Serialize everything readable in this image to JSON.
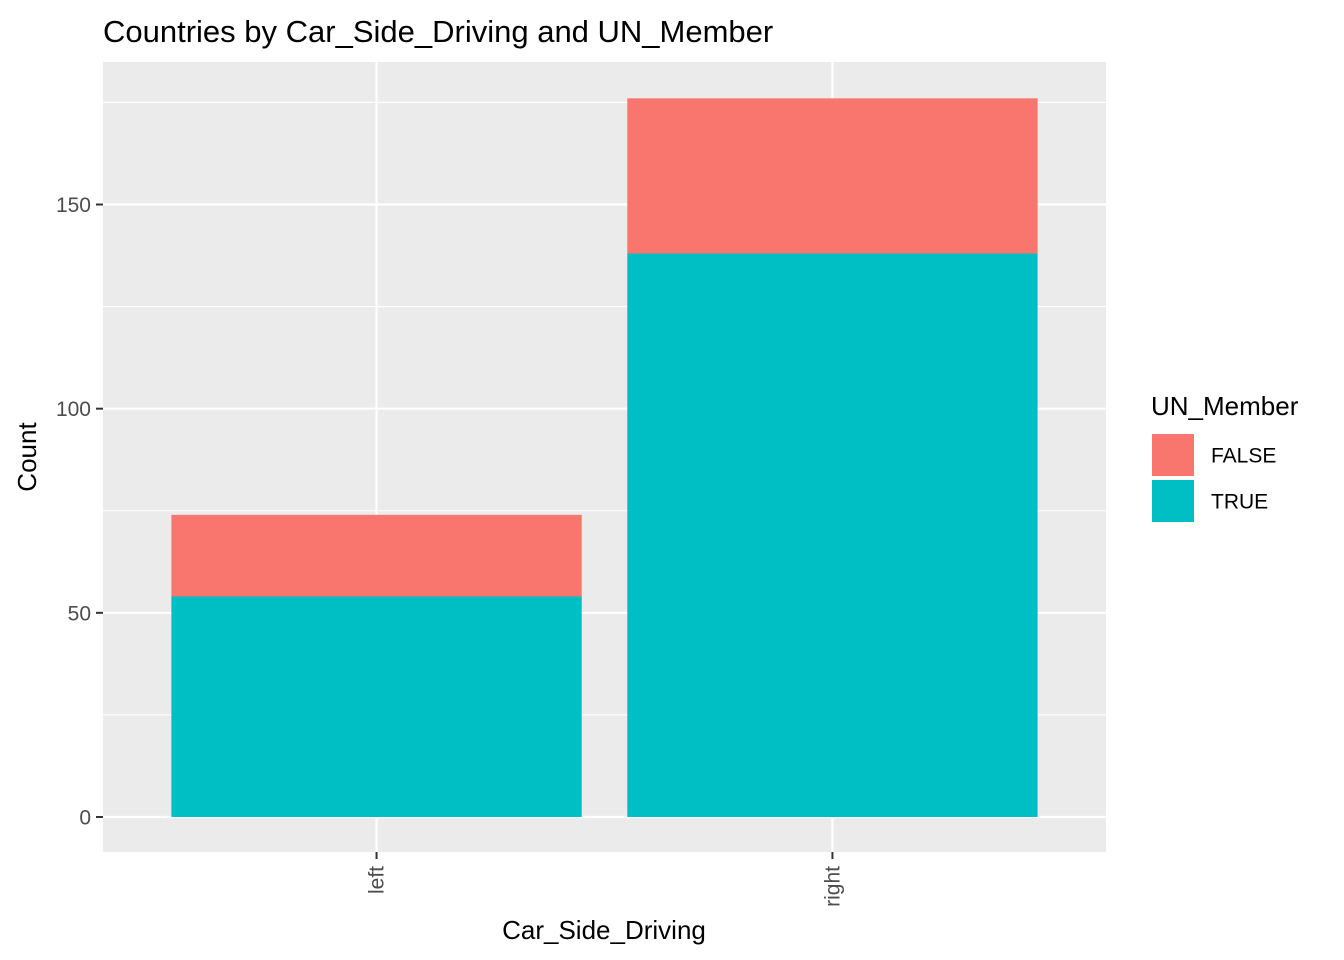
{
  "chart_data": {
    "type": "bar",
    "stacked": true,
    "title": "Countries by Car_Side_Driving and UN_Member",
    "xlabel": "Car_Side_Driving",
    "ylabel": "Count",
    "categories": [
      "left",
      "right"
    ],
    "series": [
      {
        "name": "TRUE",
        "values": [
          54,
          138
        ],
        "color": "#00BFC4"
      },
      {
        "name": "FALSE",
        "values": [
          20,
          38
        ],
        "color": "#F8766D"
      }
    ],
    "ylim": [
      0,
      176
    ],
    "yticks": [
      0,
      50,
      100,
      150
    ],
    "ytick_labels": [
      "0",
      "50",
      "100",
      "150"
    ],
    "xtick_rotation": "vertical",
    "grid": true,
    "panel_background": "#EBEBEB",
    "gridline_color": "#FFFFFF",
    "legend": {
      "title": "UN_Member",
      "position": "right",
      "entries": [
        {
          "label": "FALSE",
          "color": "#F8766D"
        },
        {
          "label": "TRUE",
          "color": "#00BFC4"
        }
      ]
    }
  }
}
